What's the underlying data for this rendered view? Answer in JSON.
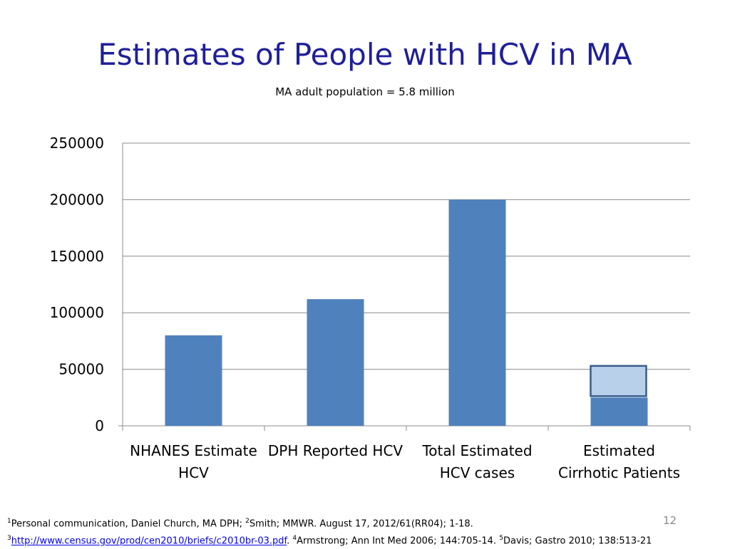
{
  "slide": {
    "title": "Estimates of People with HCV in MA",
    "subtitle": "MA adult population = 5.8 million",
    "slide_number": "12"
  },
  "footnotes": {
    "line1": [
      {
        "sup": "1",
        "text": "Personal communication, Daniel Church, MA DPH; "
      },
      {
        "sup": "2",
        "text": "Smith; MMWR. August 17, 2012/61(RR04); 1-18."
      }
    ],
    "line2_sup3": "3",
    "link": "http://www.census.gov/prod/cen2010/briefs/c2010br-03.pdf",
    "line2_after_link": ". ",
    "line2_sup4": "4",
    "line2_text4": "Armstrong; Ann Int Med 2006; 144:705-14. ",
    "line2_sup5": "5",
    "line2_text5": "Davis; Gastro 2010; 138:513-21"
  },
  "colors": {
    "bar": "#4f81bd",
    "range_fill": "#b9d0ea",
    "range_stroke": "#385d8a",
    "grid": "#8c8c8c",
    "title": "#1f1f99"
  },
  "chart_data": {
    "type": "bar",
    "categories": [
      [
        "NHANES Estimate",
        "HCV"
      ],
      [
        "DPH Reported HCV"
      ],
      [
        "Total Estimated",
        "HCV cases"
      ],
      [
        "Estimated",
        "Cirrhotic Patients"
      ]
    ],
    "values": [
      80000,
      112000,
      200000,
      25000
    ],
    "range_overlay": {
      "category_index": 3,
      "low": 25000,
      "high": 53000
    },
    "ylim": [
      0,
      250000
    ],
    "yticks": [
      0,
      50000,
      100000,
      150000,
      200000,
      250000
    ],
    "grid": true,
    "legend": "none"
  }
}
